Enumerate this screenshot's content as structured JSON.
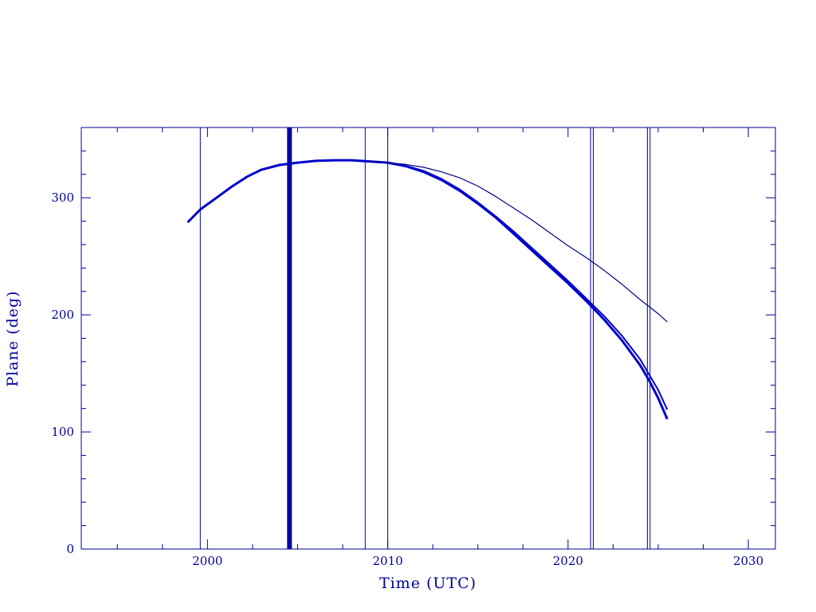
{
  "chart_data": {
    "type": "line",
    "xlabel": "Time (UTC)",
    "ylabel": "Plane (deg)",
    "xlim": [
      1993,
      2031.5
    ],
    "ylim": [
      0,
      360
    ],
    "x_ticks": [
      2000,
      2010,
      2020,
      2030
    ],
    "y_ticks": [
      0,
      100,
      200,
      300
    ],
    "grid": false,
    "colors": {
      "axis": "#00009c",
      "series_main": "#0000cc",
      "series_thin": "#00008b",
      "markers": "#0000aa"
    },
    "series": [
      {
        "values_xy": [
          [
            1998.9,
            279
          ],
          [
            1999.6,
            290
          ],
          [
            2000.5,
            300
          ],
          [
            2001.3,
            309
          ],
          [
            2002.2,
            318
          ],
          [
            2003.0,
            324
          ],
          [
            2004.0,
            328
          ],
          [
            2005.0,
            330
          ],
          [
            2006.0,
            331.5
          ],
          [
            2007.0,
            332
          ],
          [
            2008.0,
            332
          ],
          [
            2009.0,
            331
          ],
          [
            2010.0,
            330
          ],
          [
            2011.0,
            327
          ],
          [
            2012.0,
            322
          ],
          [
            2013.0,
            315
          ],
          [
            2014.0,
            306
          ],
          [
            2015.0,
            295
          ],
          [
            2016.0,
            283
          ],
          [
            2017.0,
            269
          ],
          [
            2018.0,
            255
          ],
          [
            2019.0,
            241
          ],
          [
            2020.0,
            227
          ],
          [
            2021.0,
            212
          ],
          [
            2022.0,
            196
          ],
          [
            2023.0,
            178
          ],
          [
            2024.0,
            157
          ],
          [
            2024.5,
            144
          ],
          [
            2025.0,
            129
          ],
          [
            2025.5,
            111
          ]
        ]
      },
      {
        "values_xy": [
          [
            2004.0,
            328
          ],
          [
            2006.0,
            331.5
          ],
          [
            2008.0,
            332
          ],
          [
            2010.0,
            330
          ],
          [
            2011.0,
            327.5
          ],
          [
            2012.0,
            323
          ],
          [
            2013.0,
            316
          ],
          [
            2014.0,
            307
          ],
          [
            2015.0,
            296
          ],
          [
            2016.0,
            284
          ],
          [
            2017.0,
            271
          ],
          [
            2018.0,
            257
          ],
          [
            2019.0,
            243
          ],
          [
            2020.0,
            229
          ],
          [
            2021.0,
            214
          ],
          [
            2022.0,
            199
          ],
          [
            2023.0,
            182
          ],
          [
            2024.0,
            162
          ],
          [
            2025.0,
            136
          ],
          [
            2025.5,
            119
          ]
        ]
      },
      {
        "values_xy": [
          [
            2009.0,
            331
          ],
          [
            2010.0,
            330
          ],
          [
            2011.0,
            328.5
          ],
          [
            2012.0,
            326
          ],
          [
            2013.0,
            322
          ],
          [
            2014.0,
            317
          ],
          [
            2015.0,
            310
          ],
          [
            2016.0,
            301
          ],
          [
            2017.0,
            291
          ],
          [
            2018.0,
            281
          ],
          [
            2019.0,
            270
          ],
          [
            2020.0,
            259
          ],
          [
            2021.0,
            249
          ],
          [
            2022.0,
            238
          ],
          [
            2023.0,
            226
          ],
          [
            2024.0,
            213
          ],
          [
            2025.0,
            201
          ],
          [
            2025.5,
            194
          ]
        ]
      }
    ],
    "vertical_markers": [
      {
        "x": 1999.6,
        "weight": "thin"
      },
      {
        "x": 2004.55,
        "weight": "thick"
      },
      {
        "x": 2008.75,
        "weight": "thin"
      },
      {
        "x": 2010.0,
        "weight": "thin"
      },
      {
        "x": 2021.25,
        "weight": "thin"
      },
      {
        "x": 2021.4,
        "weight": "thin"
      },
      {
        "x": 2024.4,
        "weight": "thin"
      },
      {
        "x": 2024.55,
        "weight": "thin"
      }
    ]
  }
}
